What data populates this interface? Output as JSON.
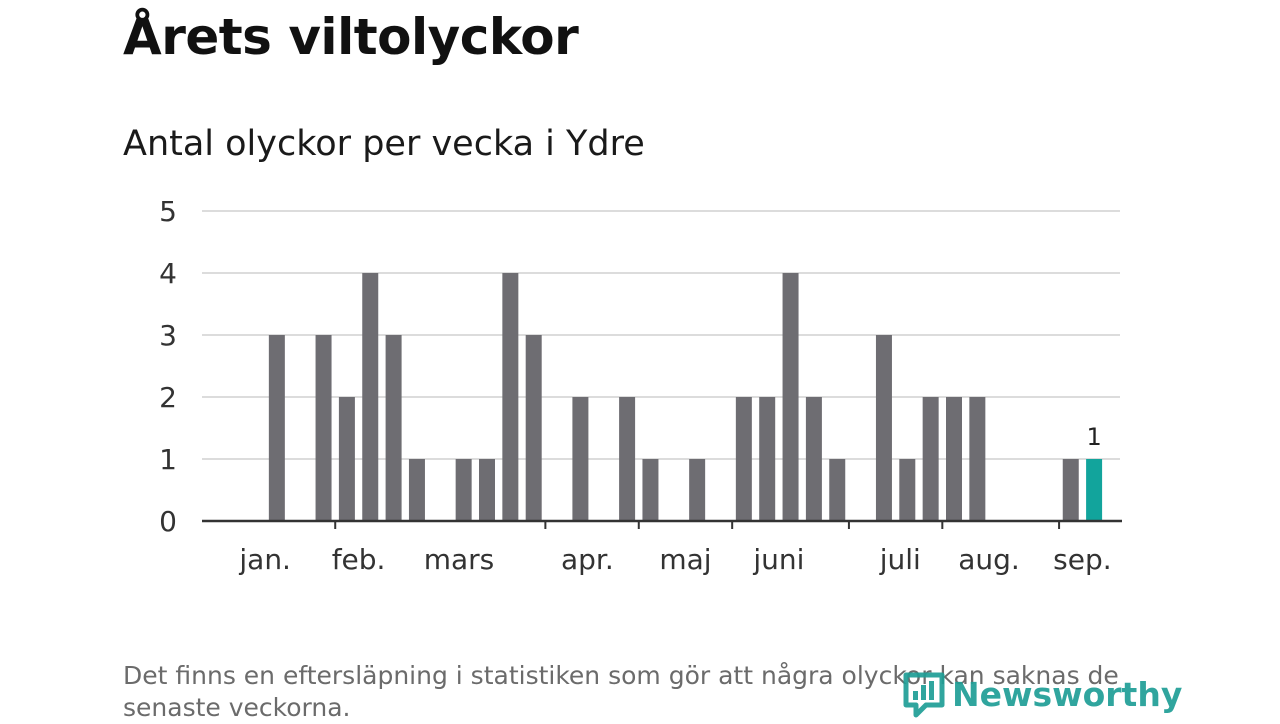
{
  "title": "Årets viltolyckor",
  "footnote": "Det finns en eftersläpning i statistiken som gör att några olyckor kan saknas de senaste veckorna.",
  "logo": {
    "text": "Newsworthy",
    "icon": "bar-chart-logo-icon",
    "color": "#1f9e96"
  },
  "chart_data": {
    "type": "bar",
    "title": "Antal olyckor per vecka i Ydre",
    "ylim": [
      0,
      5
    ],
    "yticks": [
      0,
      1,
      2,
      3,
      4,
      5
    ],
    "grid": true,
    "weeks": [
      1,
      2,
      3,
      4,
      5,
      6,
      7,
      8,
      9,
      10,
      11,
      12,
      13,
      14,
      15,
      16,
      17,
      18,
      19,
      20,
      21,
      22,
      23,
      24,
      25,
      26,
      27,
      28,
      29,
      30,
      31,
      32,
      33,
      34,
      35,
      36,
      37
    ],
    "values": [
      0,
      3,
      0,
      3,
      2,
      4,
      3,
      1,
      0,
      1,
      1,
      4,
      3,
      0,
      2,
      0,
      2,
      1,
      0,
      1,
      0,
      2,
      2,
      4,
      2,
      1,
      0,
      3,
      1,
      2,
      2,
      2,
      0,
      0,
      0,
      1,
      1
    ],
    "month_labels": [
      {
        "label": "jan.",
        "week": 1.5
      },
      {
        "label": "feb.",
        "week": 5.5
      },
      {
        "label": "mars",
        "week": 9.8
      },
      {
        "label": "apr.",
        "week": 15.3
      },
      {
        "label": "maj",
        "week": 19.5
      },
      {
        "label": "juni",
        "week": 23.5
      },
      {
        "label": "juli",
        "week": 28.7
      },
      {
        "label": "aug.",
        "week": 32.5
      },
      {
        "label": "sep.",
        "week": 36.5
      }
    ],
    "month_tick_weeks": [
      5,
      14,
      18,
      22,
      27,
      31,
      36
    ],
    "highlight_index": 36,
    "highlight_label": "1",
    "colors": {
      "bar": "#6e6d72",
      "highlight": "#12a49c",
      "grid": "#dcdcdc",
      "axis": "#333333"
    }
  }
}
